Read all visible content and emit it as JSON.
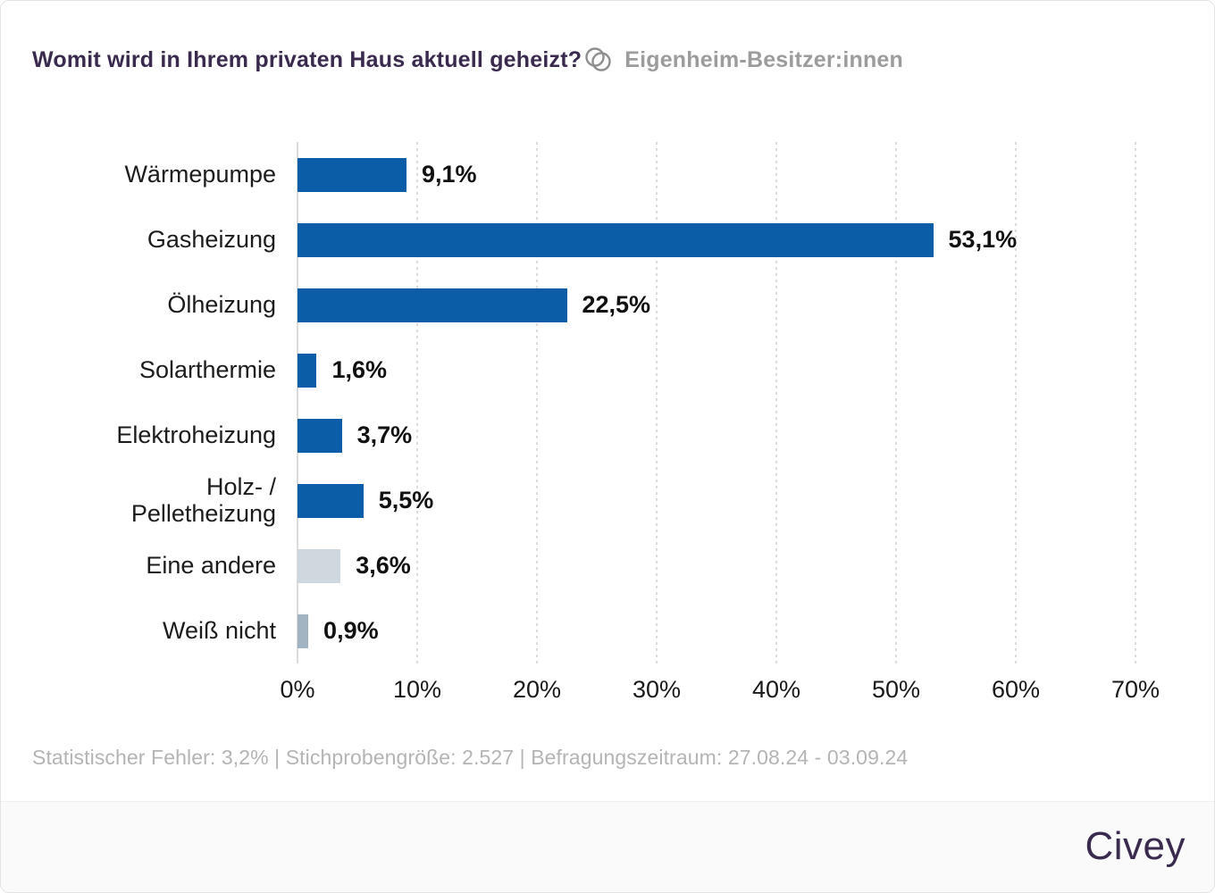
{
  "header": {
    "title": "Womit wird in Ihrem privaten Haus aktuell geheizt?",
    "audience_label": "Eigenheim-Besitzer:innen",
    "audience_icon": "overlapping-circles-icon"
  },
  "chart_data": {
    "type": "bar",
    "orientation": "horizontal",
    "title": "Womit wird in Ihrem privaten Haus aktuell geheizt?",
    "categories": [
      "Wärmepumpe",
      "Gasheizung",
      "Ölheizung",
      "Solarthermie",
      "Elektroheizung",
      "Holz- / Pelletheizung",
      "Eine andere",
      "Weiß nicht"
    ],
    "values": [
      9.1,
      53.1,
      22.5,
      1.6,
      3.7,
      5.5,
      3.6,
      0.9
    ],
    "value_labels": [
      "9,1%",
      "53,1%",
      "22,5%",
      "1,6%",
      "3,7%",
      "5,5%",
      "3,6%",
      "0,9%"
    ],
    "bar_colors": [
      "#0b5da7",
      "#0b5da7",
      "#0b5da7",
      "#0b5da7",
      "#0b5da7",
      "#0b5da7",
      "#cfd8df",
      "#a2b3c1"
    ],
    "x_ticks": [
      "0%",
      "10%",
      "20%",
      "30%",
      "40%",
      "50%",
      "60%",
      "70%"
    ],
    "xlim": [
      0,
      70
    ],
    "xlabel": "",
    "ylabel": "",
    "grid": "vertical dotted gridlines every 10%, solid baseline at 0%",
    "legend": "none"
  },
  "footer": {
    "note": "Statistischer Fehler: 3,2% | Stichprobengröße: 2.527 | Befragungszeitraum: 27.08.24 - 03.09.24",
    "brand_logo": "Civey"
  },
  "colors": {
    "bar_primary": "#0b5da7",
    "bar_other": "#cfd8df",
    "bar_unknown": "#a2b3c1",
    "title_text": "#3a2b4e",
    "audience_text": "#9c9c9c",
    "brand_text": "#3a2b4e",
    "footer_band": "#fafafa",
    "grid_line": "#dcdcdc",
    "category_text": "#1c1c1c",
    "value_text": "#111111",
    "note_text": "#b4b4b4"
  }
}
